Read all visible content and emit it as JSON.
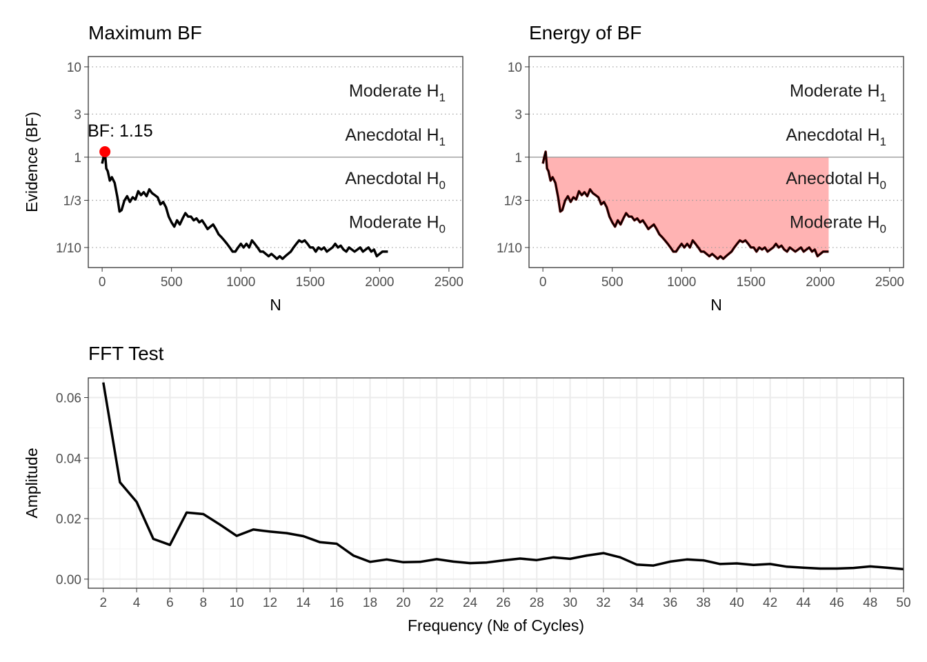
{
  "colors": {
    "line": "#000000",
    "point": "#ff0000",
    "fill": "#ffb3b3",
    "grid": "#ebebeb",
    "dotted": "#999999",
    "refline": "#999999"
  },
  "chart_data": [
    {
      "type": "line",
      "title": "Maximum BF",
      "xlabel": "N",
      "ylabel": "Evidence (BF)",
      "y_scale": "log",
      "xlim": [
        -100,
        2600
      ],
      "ylim": [
        0.06,
        13
      ],
      "x_ticks": [
        0,
        500,
        1000,
        1500,
        2000,
        2500
      ],
      "x_tick_labels": [
        "0",
        "500",
        "1000",
        "1500",
        "2000",
        "2500"
      ],
      "y_ticks": [
        0.1,
        0.333,
        1,
        3,
        10
      ],
      "y_tick_labels": [
        "1/10",
        "1/3",
        "1",
        "3",
        "10"
      ],
      "zones": [
        {
          "base": "Moderate H",
          "sub": "1",
          "y": 5.4
        },
        {
          "base": "Anecdotal H",
          "sub": "1",
          "y": 1.75
        },
        {
          "base": "Anecdotal H",
          "sub": "0",
          "y": 0.58
        },
        {
          "base": "Moderate H",
          "sub": "0",
          "y": 0.19
        }
      ],
      "annotation": {
        "label": "BF: 1.15",
        "x": 20,
        "y": 1.15
      },
      "series": [
        {
          "x": [
            0,
            10,
            20,
            30,
            40,
            55,
            70,
            90,
            110,
            125,
            140,
            160,
            180,
            200,
            220,
            240,
            260,
            280,
            300,
            320,
            340,
            360,
            380,
            400,
            420,
            440,
            460,
            480,
            500,
            520,
            540,
            560,
            580,
            600,
            620,
            640,
            660,
            680,
            700,
            720,
            740,
            760,
            780,
            800,
            820,
            840,
            860,
            880,
            900,
            920,
            940,
            960,
            980,
            1000,
            1020,
            1040,
            1060,
            1080,
            1100,
            1120,
            1140,
            1160,
            1180,
            1200,
            1220,
            1240,
            1260,
            1280,
            1300,
            1320,
            1340,
            1360,
            1380,
            1400,
            1420,
            1440,
            1460,
            1480,
            1500,
            1520,
            1540,
            1560,
            1580,
            1600,
            1620,
            1640,
            1660,
            1680,
            1700,
            1720,
            1740,
            1760,
            1780,
            1800,
            1820,
            1840,
            1860,
            1880,
            1900,
            1920,
            1940,
            1960,
            1980,
            2000,
            2020,
            2040,
            2060
          ],
          "y": [
            0.85,
            1.0,
            1.15,
            0.75,
            0.7,
            0.55,
            0.6,
            0.52,
            0.36,
            0.25,
            0.26,
            0.33,
            0.37,
            0.32,
            0.36,
            0.34,
            0.42,
            0.38,
            0.41,
            0.37,
            0.44,
            0.4,
            0.38,
            0.36,
            0.3,
            0.32,
            0.28,
            0.22,
            0.19,
            0.17,
            0.2,
            0.18,
            0.21,
            0.24,
            0.22,
            0.22,
            0.2,
            0.21,
            0.19,
            0.2,
            0.18,
            0.16,
            0.17,
            0.18,
            0.16,
            0.14,
            0.13,
            0.12,
            0.11,
            0.1,
            0.09,
            0.09,
            0.1,
            0.11,
            0.1,
            0.11,
            0.1,
            0.12,
            0.11,
            0.1,
            0.09,
            0.09,
            0.085,
            0.08,
            0.085,
            0.08,
            0.075,
            0.08,
            0.075,
            0.08,
            0.085,
            0.09,
            0.1,
            0.11,
            0.12,
            0.115,
            0.12,
            0.11,
            0.1,
            0.1,
            0.09,
            0.1,
            0.095,
            0.1,
            0.09,
            0.095,
            0.1,
            0.11,
            0.1,
            0.105,
            0.095,
            0.09,
            0.1,
            0.095,
            0.09,
            0.095,
            0.1,
            0.09,
            0.095,
            0.1,
            0.09,
            0.095,
            0.08,
            0.085,
            0.09,
            0.09,
            0.09
          ]
        }
      ]
    },
    {
      "type": "area",
      "title": "Energy of BF",
      "xlabel": "N",
      "ylabel": "",
      "y_scale": "log",
      "xlim": [
        -100,
        2600
      ],
      "ylim": [
        0.06,
        13
      ],
      "x_ticks": [
        0,
        500,
        1000,
        1500,
        2000,
        2500
      ],
      "x_tick_labels": [
        "0",
        "500",
        "1000",
        "1500",
        "2000",
        "2500"
      ],
      "y_ticks": [
        0.1,
        0.333,
        1,
        3,
        10
      ],
      "y_tick_labels": [
        "1/10",
        "1/3",
        "1",
        "3",
        "10"
      ],
      "zones": [
        {
          "base": "Moderate H",
          "sub": "1",
          "y": 5.4
        },
        {
          "base": "Anecdotal H",
          "sub": "1",
          "y": 1.75
        },
        {
          "base": "Anecdotal H",
          "sub": "0",
          "y": 0.58
        },
        {
          "base": "Moderate H",
          "sub": "0",
          "y": 0.19
        }
      ],
      "shaded_between": "series and BF = 1",
      "series": [
        {
          "x": [
            0,
            10,
            20,
            30,
            40,
            55,
            70,
            90,
            110,
            125,
            140,
            160,
            180,
            200,
            220,
            240,
            260,
            280,
            300,
            320,
            340,
            360,
            380,
            400,
            420,
            440,
            460,
            480,
            500,
            520,
            540,
            560,
            580,
            600,
            620,
            640,
            660,
            680,
            700,
            720,
            740,
            760,
            780,
            800,
            820,
            840,
            860,
            880,
            900,
            920,
            940,
            960,
            980,
            1000,
            1020,
            1040,
            1060,
            1080,
            1100,
            1120,
            1140,
            1160,
            1180,
            1200,
            1220,
            1240,
            1260,
            1280,
            1300,
            1320,
            1340,
            1360,
            1380,
            1400,
            1420,
            1440,
            1460,
            1480,
            1500,
            1520,
            1540,
            1560,
            1580,
            1600,
            1620,
            1640,
            1660,
            1680,
            1700,
            1720,
            1740,
            1760,
            1780,
            1800,
            1820,
            1840,
            1860,
            1880,
            1900,
            1920,
            1940,
            1960,
            1980,
            2000,
            2020,
            2040,
            2060
          ],
          "y": [
            0.85,
            1.0,
            1.15,
            0.75,
            0.7,
            0.55,
            0.6,
            0.52,
            0.36,
            0.25,
            0.26,
            0.33,
            0.37,
            0.32,
            0.36,
            0.34,
            0.42,
            0.38,
            0.41,
            0.37,
            0.44,
            0.4,
            0.38,
            0.36,
            0.3,
            0.32,
            0.28,
            0.22,
            0.19,
            0.17,
            0.2,
            0.18,
            0.21,
            0.24,
            0.22,
            0.22,
            0.2,
            0.21,
            0.19,
            0.2,
            0.18,
            0.16,
            0.17,
            0.18,
            0.16,
            0.14,
            0.13,
            0.12,
            0.11,
            0.1,
            0.09,
            0.09,
            0.1,
            0.11,
            0.1,
            0.11,
            0.1,
            0.12,
            0.11,
            0.1,
            0.09,
            0.09,
            0.085,
            0.08,
            0.085,
            0.08,
            0.075,
            0.08,
            0.075,
            0.08,
            0.085,
            0.09,
            0.1,
            0.11,
            0.12,
            0.115,
            0.12,
            0.11,
            0.1,
            0.1,
            0.09,
            0.1,
            0.095,
            0.1,
            0.09,
            0.095,
            0.1,
            0.11,
            0.1,
            0.105,
            0.095,
            0.09,
            0.1,
            0.095,
            0.09,
            0.095,
            0.1,
            0.09,
            0.095,
            0.1,
            0.09,
            0.095,
            0.08,
            0.085,
            0.09,
            0.09,
            0.09
          ]
        }
      ]
    },
    {
      "type": "line",
      "title": "FFT Test",
      "xlabel": "Frequency (№ of Cycles)",
      "ylabel": "Amplitude",
      "xlim": [
        1.1,
        50
      ],
      "ylim": [
        -0.003,
        0.0665
      ],
      "grid": true,
      "x_ticks": [
        2,
        4,
        6,
        8,
        10,
        12,
        14,
        16,
        18,
        20,
        22,
        24,
        26,
        28,
        30,
        32,
        34,
        36,
        38,
        40,
        42,
        44,
        46,
        48,
        50
      ],
      "x_tick_labels": [
        "2",
        "4",
        "6",
        "8",
        "10",
        "12",
        "14",
        "16",
        "18",
        "20",
        "22",
        "24",
        "26",
        "28",
        "30",
        "32",
        "34",
        "36",
        "38",
        "40",
        "42",
        "44",
        "46",
        "48",
        "50"
      ],
      "y_ticks": [
        0.0,
        0.02,
        0.04,
        0.06
      ],
      "y_tick_labels": [
        "0.00",
        "0.02",
        "0.04",
        "0.06"
      ],
      "series": [
        {
          "x": [
            2,
            3,
            4,
            5,
            6,
            7,
            8,
            9,
            10,
            11,
            12,
            13,
            14,
            15,
            16,
            17,
            18,
            19,
            20,
            21,
            22,
            23,
            24,
            25,
            26,
            27,
            28,
            29,
            30,
            31,
            32,
            33,
            34,
            35,
            36,
            37,
            38,
            39,
            40,
            41,
            42,
            43,
            44,
            45,
            46,
            47,
            48,
            49,
            50
          ],
          "y": [
            0.065,
            0.032,
            0.0255,
            0.0133,
            0.0113,
            0.022,
            0.0215,
            0.018,
            0.0143,
            0.0164,
            0.0157,
            0.0152,
            0.0142,
            0.0122,
            0.0117,
            0.0078,
            0.0057,
            0.0065,
            0.0056,
            0.0057,
            0.0066,
            0.0058,
            0.0053,
            0.0055,
            0.0062,
            0.0068,
            0.0063,
            0.0072,
            0.0067,
            0.0078,
            0.0086,
            0.0072,
            0.0048,
            0.0045,
            0.0058,
            0.0065,
            0.0062,
            0.005,
            0.0052,
            0.0047,
            0.005,
            0.0041,
            0.0038,
            0.0035,
            0.0035,
            0.0037,
            0.0042,
            0.0038,
            0.0033
          ]
        }
      ]
    }
  ]
}
